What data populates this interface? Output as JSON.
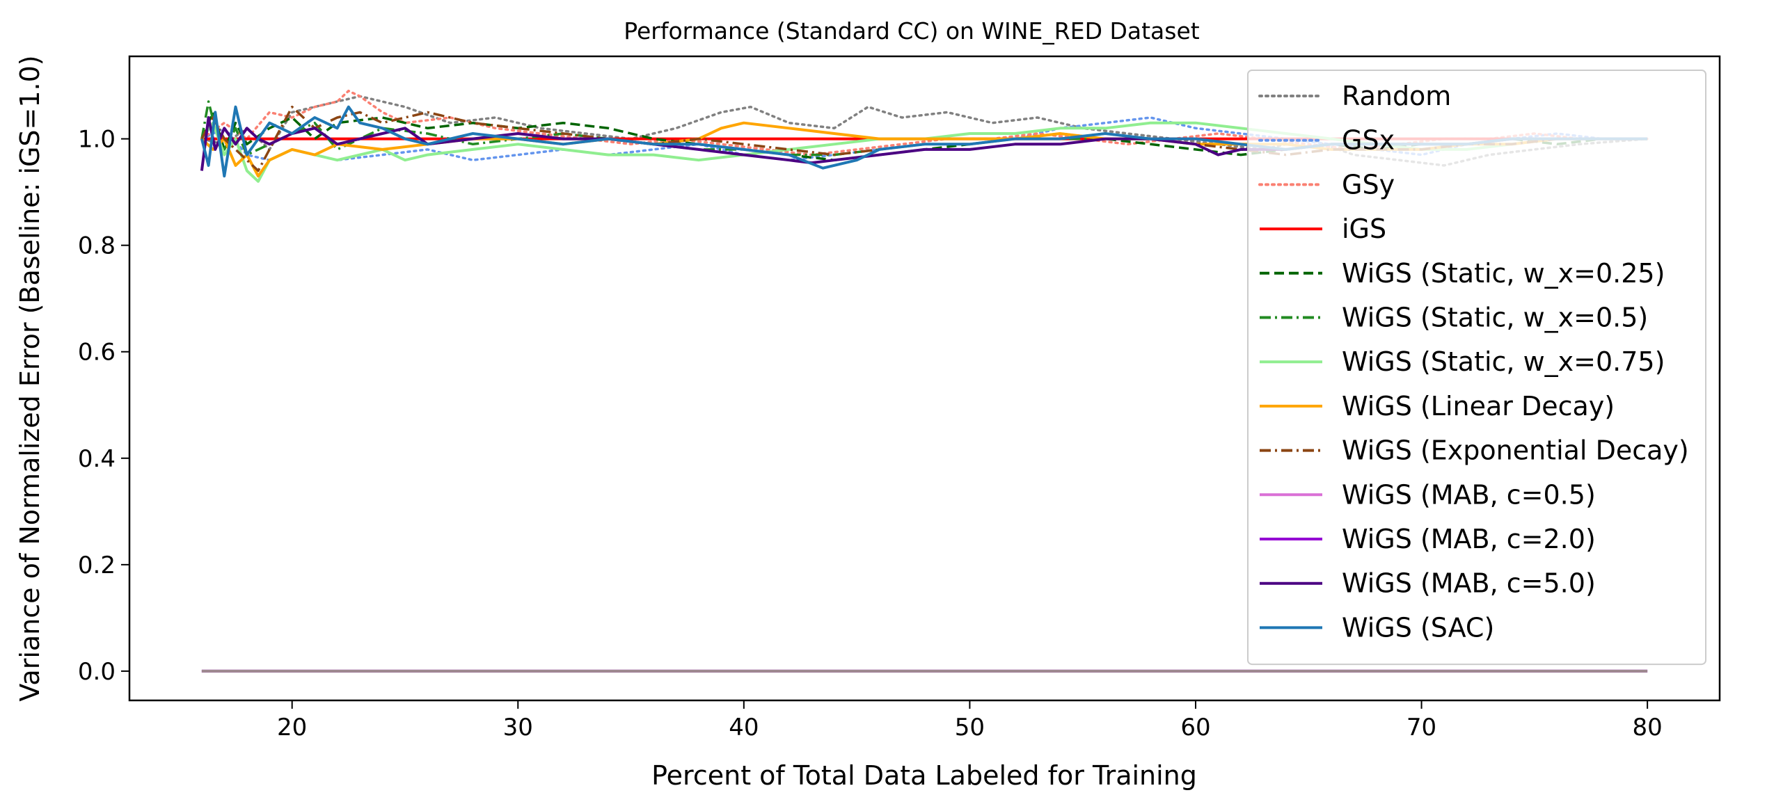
{
  "chart_data": {
    "type": "line",
    "title": "Performance (Standard CC) on WINE_RED Dataset",
    "xlabel": "Percent of Total Data Labeled for Training",
    "ylabel": "Variance of Normalized Error (Baseline: iGS=1.0)",
    "xlim": [
      12.8,
      83.2
    ],
    "ylim": [
      -0.055,
      1.155
    ],
    "xticks": [
      20,
      30,
      40,
      50,
      60,
      70,
      80
    ],
    "yticks": [
      0.0,
      0.2,
      0.4,
      0.6,
      0.8,
      1.0
    ],
    "ytick_labels": [
      "0.0",
      "0.2",
      "0.4",
      "0.6",
      "0.8",
      "1.0"
    ],
    "grid": false,
    "legend_position": "top-right",
    "x_range": [
      16,
      80
    ],
    "series": [
      {
        "name": "Random",
        "color": "#808080",
        "dash": "dotted",
        "x": [
          16,
          17,
          18,
          19,
          20,
          22,
          23,
          25,
          27,
          29,
          31,
          33,
          35,
          37,
          39,
          40.3,
          42,
          44,
          45.5,
          47,
          49,
          51,
          53,
          55,
          57,
          59,
          61,
          63,
          65,
          67,
          69,
          71,
          73,
          75,
          77,
          80
        ],
        "y": [
          1.0,
          0.99,
          1.02,
          0.98,
          1.05,
          1.07,
          1.08,
          1.06,
          1.03,
          1.04,
          1.02,
          1.01,
          1.0,
          1.02,
          1.05,
          1.06,
          1.03,
          1.02,
          1.06,
          1.04,
          1.05,
          1.03,
          1.04,
          1.02,
          1.01,
          1.0,
          0.99,
          0.98,
          1.0,
          0.97,
          0.96,
          0.95,
          0.97,
          0.98,
          0.99,
          1.0
        ]
      },
      {
        "name": "GSx",
        "color": "#6495ed",
        "dash": "dotted",
        "x": [
          16,
          17,
          18,
          19,
          20,
          22,
          24,
          26,
          28,
          30,
          32,
          34,
          36,
          38,
          40,
          42,
          44,
          46,
          48,
          50,
          52,
          54,
          56,
          58,
          60,
          62,
          64,
          66,
          68,
          70,
          72,
          74,
          76,
          78,
          80
        ],
        "y": [
          1.0,
          1.02,
          0.97,
          0.96,
          0.98,
          0.96,
          0.97,
          0.98,
          0.96,
          0.97,
          0.98,
          0.97,
          0.98,
          0.99,
          0.97,
          0.96,
          0.97,
          0.98,
          0.99,
          0.99,
          1.0,
          1.02,
          1.03,
          1.04,
          1.02,
          1.01,
          1.0,
          0.99,
          0.98,
          0.97,
          0.99,
          1.0,
          1.01,
          1.0,
          1.0
        ]
      },
      {
        "name": "GSy",
        "color": "#fa8072",
        "dash": "dotted",
        "x": [
          16,
          17,
          18,
          19,
          20,
          21,
          22,
          22.5,
          23,
          24,
          25,
          27,
          29,
          31,
          33,
          35,
          37,
          39,
          41,
          43,
          45,
          47,
          49,
          51,
          53,
          55,
          57,
          59,
          61,
          63,
          65,
          67,
          69,
          71,
          73,
          75,
          77,
          80
        ],
        "y": [
          1.0,
          1.03,
          1.0,
          1.05,
          1.04,
          1.06,
          1.07,
          1.09,
          1.08,
          1.05,
          1.03,
          1.04,
          1.02,
          1.01,
          1.0,
          0.99,
          1.0,
          0.99,
          0.98,
          0.97,
          0.98,
          0.99,
          1.0,
          1.0,
          1.01,
          1.0,
          0.99,
          1.0,
          1.01,
          1.0,
          0.99,
          0.98,
          0.99,
          1.0,
          1.0,
          1.01,
          1.0,
          1.0
        ]
      },
      {
        "name": "iGS",
        "color": "#ff0000",
        "dash": "solid",
        "x": [
          16,
          80
        ],
        "y": [
          1.0,
          1.0
        ]
      },
      {
        "name": "WiGS (Static, w_x=0.25)",
        "color": "#006400",
        "dash": "dashed",
        "x": [
          16,
          16.5,
          17,
          17.5,
          18,
          19,
          20,
          21,
          22,
          24,
          26,
          28,
          30,
          32,
          34,
          36,
          38,
          40,
          42,
          44,
          46,
          48,
          50,
          52,
          54,
          56,
          58,
          60,
          62,
          64,
          66,
          68,
          70,
          72,
          74,
          76,
          78,
          80
        ],
        "y": [
          1.0,
          1.05,
          0.98,
          1.03,
          0.99,
          1.02,
          1.04,
          1.0,
          1.03,
          1.04,
          1.02,
          1.03,
          1.02,
          1.03,
          1.02,
          1.0,
          0.99,
          0.98,
          0.97,
          0.96,
          0.97,
          0.98,
          0.99,
          1.0,
          1.01,
          1.0,
          0.99,
          0.98,
          0.97,
          0.98,
          0.99,
          0.98,
          0.99,
          0.99,
          1.0,
          0.99,
          1.0,
          1.0
        ]
      },
      {
        "name": "WiGS (Static, w_x=0.5)",
        "color": "#228b22",
        "dash": "dashdot",
        "x": [
          16,
          16.3,
          16.6,
          17,
          17.5,
          18,
          19,
          20,
          21,
          22,
          23,
          24,
          26,
          28,
          30,
          32,
          34,
          36,
          38,
          40,
          42,
          44,
          46,
          48,
          50,
          52,
          54,
          56,
          58,
          60,
          62,
          64,
          66,
          68,
          70,
          72,
          74,
          76,
          78,
          80
        ],
        "y": [
          1.0,
          1.07,
          1.02,
          0.98,
          1.02,
          0.97,
          0.99,
          1.01,
          1.03,
          0.98,
          1.0,
          1.02,
          1.01,
          0.99,
          1.0,
          1.01,
          1.0,
          0.99,
          0.98,
          0.98,
          0.97,
          0.97,
          0.98,
          0.99,
          0.99,
          1.0,
          1.0,
          1.0,
          1.0,
          0.99,
          0.99,
          0.99,
          0.98,
          0.98,
          0.98,
          0.99,
          0.99,
          1.0,
          1.0,
          1.0
        ]
      },
      {
        "name": "WiGS (Static, w_x=0.75)",
        "color": "#90ee90",
        "dash": "solid",
        "x": [
          16,
          16.5,
          17,
          17.5,
          18,
          18.5,
          19,
          20,
          21,
          22,
          24,
          25,
          26,
          28,
          30,
          32,
          34,
          36,
          38,
          40,
          42,
          44,
          46,
          48,
          50,
          52,
          54,
          56,
          58,
          60,
          62,
          64,
          66,
          68,
          70,
          72,
          74,
          76,
          78,
          80
        ],
        "y": [
          1.0,
          1.03,
          0.97,
          1.0,
          0.94,
          0.92,
          0.96,
          0.98,
          0.97,
          0.96,
          0.98,
          0.96,
          0.97,
          0.98,
          0.99,
          0.98,
          0.97,
          0.97,
          0.96,
          0.97,
          0.98,
          0.99,
          1.0,
          1.0,
          1.01,
          1.01,
          1.02,
          1.02,
          1.03,
          1.03,
          1.02,
          1.01,
          1.0,
          0.99,
          0.98,
          0.98,
          0.99,
          1.0,
          1.0,
          1.0
        ]
      },
      {
        "name": "WiGS (Linear Decay)",
        "color": "#ffa500",
        "dash": "solid",
        "x": [
          16,
          16.5,
          17,
          17.5,
          18,
          18.5,
          19,
          20,
          21,
          22,
          24,
          26,
          28,
          30,
          32,
          34,
          36,
          38,
          39,
          40,
          42,
          44,
          46,
          48,
          50,
          52,
          54,
          56,
          58,
          60,
          62,
          64,
          66,
          68,
          70,
          72,
          74,
          76,
          78,
          80
        ],
        "y": [
          1.0,
          0.98,
          1.0,
          0.95,
          0.97,
          0.93,
          0.96,
          0.98,
          0.97,
          0.99,
          0.98,
          0.99,
          1.0,
          1.0,
          0.99,
          1.0,
          0.99,
          1.0,
          1.02,
          1.03,
          1.02,
          1.01,
          1.0,
          1.0,
          1.0,
          1.0,
          1.01,
          1.0,
          1.0,
          0.99,
          0.99,
          0.99,
          0.98,
          0.98,
          0.98,
          0.99,
          0.99,
          1.0,
          1.0,
          1.0
        ]
      },
      {
        "name": "WiGS (Exponential Decay)",
        "color": "#8b4513",
        "dash": "dashdot",
        "x": [
          16,
          16.5,
          17,
          17.5,
          18,
          18.5,
          19,
          20,
          21,
          22,
          23,
          24,
          25,
          26,
          28,
          30,
          32,
          34,
          36,
          38,
          40,
          42,
          44,
          46,
          48,
          50,
          52,
          54,
          56,
          58,
          60,
          62,
          64,
          66,
          68,
          70,
          72,
          74,
          76,
          78,
          80
        ],
        "y": [
          1.0,
          1.04,
          1.0,
          0.98,
          0.96,
          0.94,
          0.98,
          1.06,
          1.02,
          1.04,
          1.05,
          1.03,
          1.04,
          1.05,
          1.03,
          1.02,
          1.01,
          1.0,
          0.99,
          1.0,
          0.99,
          0.98,
          0.97,
          0.98,
          0.99,
          0.99,
          1.0,
          1.0,
          1.01,
          1.0,
          0.99,
          0.98,
          0.97,
          0.98,
          0.98,
          0.98,
          0.99,
          0.99,
          1.0,
          1.0,
          1.0
        ]
      },
      {
        "name": "WiGS (MAB, c=0.5)",
        "color": "#da70d6",
        "dash": "solid",
        "x": [
          16,
          80
        ],
        "y": [
          0.0,
          0.0
        ]
      },
      {
        "name": "WiGS (MAB, c=2.0)",
        "color": "#9400d3",
        "dash": "solid",
        "x": [
          16,
          80
        ],
        "y": [
          0.0,
          0.0
        ]
      },
      {
        "name": "WiGS (MAB, c=5.0)",
        "color": "#4b0082",
        "dash": "solid",
        "x": [
          16,
          16.3,
          16.6,
          17,
          17.5,
          18,
          18.5,
          19,
          20,
          21,
          22,
          23,
          24,
          25,
          26,
          28,
          30,
          32,
          34,
          36,
          38,
          40,
          42,
          43,
          44,
          46,
          48,
          50,
          52,
          54,
          56,
          58,
          60,
          61,
          62,
          64,
          66,
          68,
          70,
          72,
          74,
          76,
          78,
          80
        ],
        "y": [
          0.94,
          1.04,
          0.98,
          1.02,
          0.99,
          1.02,
          1.0,
          0.99,
          1.01,
          1.02,
          0.99,
          1.0,
          1.01,
          1.02,
          0.99,
          1.0,
          1.01,
          1.0,
          1.0,
          0.99,
          0.98,
          0.97,
          0.96,
          0.955,
          0.96,
          0.97,
          0.98,
          0.98,
          0.99,
          0.99,
          1.0,
          1.0,
          0.99,
          0.97,
          0.98,
          0.98,
          0.99,
          0.99,
          0.99,
          0.99,
          1.0,
          1.0,
          1.0,
          1.0
        ]
      },
      {
        "name": "WiGS (SAC)",
        "color": "#1f77b4",
        "dash": "solid",
        "x": [
          16,
          16.3,
          16.6,
          17,
          17.5,
          18,
          18.5,
          19,
          20,
          21,
          22,
          22.5,
          23,
          24,
          25,
          26,
          28,
          30,
          32,
          34,
          36,
          38,
          40,
          42,
          43.5,
          45,
          46,
          48,
          50,
          52,
          54,
          56,
          58,
          60,
          62,
          64,
          66,
          68,
          70,
          72,
          74,
          76,
          78,
          80
        ],
        "y": [
          1.0,
          0.95,
          1.05,
          0.93,
          1.06,
          0.97,
          1.0,
          1.03,
          1.01,
          1.04,
          1.02,
          1.06,
          1.03,
          1.02,
          1.0,
          0.99,
          1.01,
          1.0,
          0.99,
          1.0,
          0.99,
          0.99,
          0.98,
          0.97,
          0.945,
          0.96,
          0.98,
          0.99,
          0.99,
          1.0,
          1.0,
          1.01,
          1.0,
          1.0,
          0.99,
          0.98,
          0.99,
          0.99,
          0.99,
          0.99,
          1.0,
          1.0,
          1.0,
          1.0
        ]
      },
      {
        "name": "",
        "color": "#9e8a8f",
        "dash": "solid",
        "legend": false,
        "x": [
          16,
          80
        ],
        "y": [
          0.0,
          0.0
        ]
      }
    ]
  }
}
